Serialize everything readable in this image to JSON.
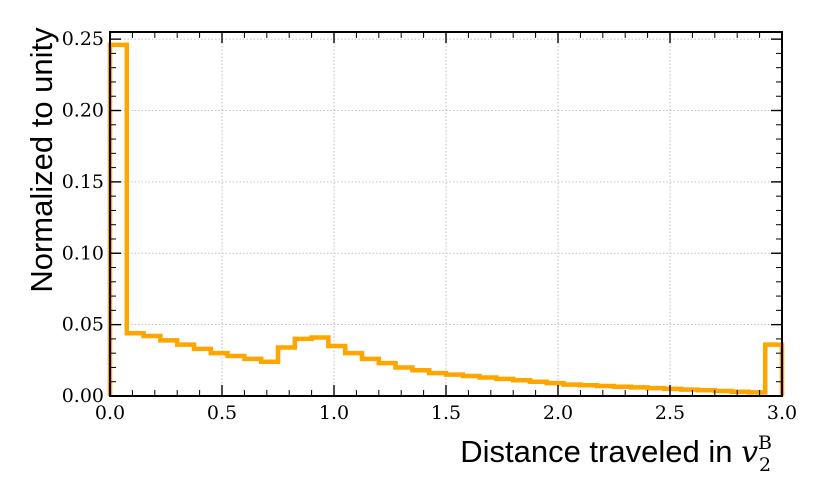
{
  "chart_data": {
    "type": "histogram",
    "title": "",
    "xlabel": {
      "text": "Distance traveled in ",
      "math_base": "v",
      "math_subscript": "2",
      "math_superscript": "B"
    },
    "ylabel": "Normalized to unity",
    "xlim": [
      0.0,
      3.0
    ],
    "ylim": [
      0.0,
      0.255
    ],
    "xticks": [
      0.0,
      0.5,
      1.0,
      1.5,
      2.0,
      2.5,
      3.0
    ],
    "xtick_labels": [
      "0.0",
      "0.5",
      "1.0",
      "1.5",
      "2.0",
      "2.5",
      "3.0"
    ],
    "yticks": [
      0.0,
      0.05,
      0.1,
      0.15,
      0.2,
      0.25
    ],
    "ytick_labels": [
      "0.00",
      "0.05",
      "0.10",
      "0.15",
      "0.20",
      "0.25"
    ],
    "grid": true,
    "bin_width": 0.075,
    "bin_start": 0.0,
    "series": [
      {
        "color": "#FFA500",
        "values": [
          0.246,
          0.044,
          0.042,
          0.039,
          0.036,
          0.033,
          0.03,
          0.028,
          0.026,
          0.024,
          0.034,
          0.04,
          0.041,
          0.035,
          0.03,
          0.026,
          0.023,
          0.02,
          0.018,
          0.016,
          0.015,
          0.014,
          0.013,
          0.012,
          0.011,
          0.01,
          0.009,
          0.008,
          0.0075,
          0.007,
          0.0065,
          0.006,
          0.0055,
          0.005,
          0.0045,
          0.004,
          0.0035,
          0.003,
          0.0025,
          0.036
        ]
      }
    ]
  }
}
